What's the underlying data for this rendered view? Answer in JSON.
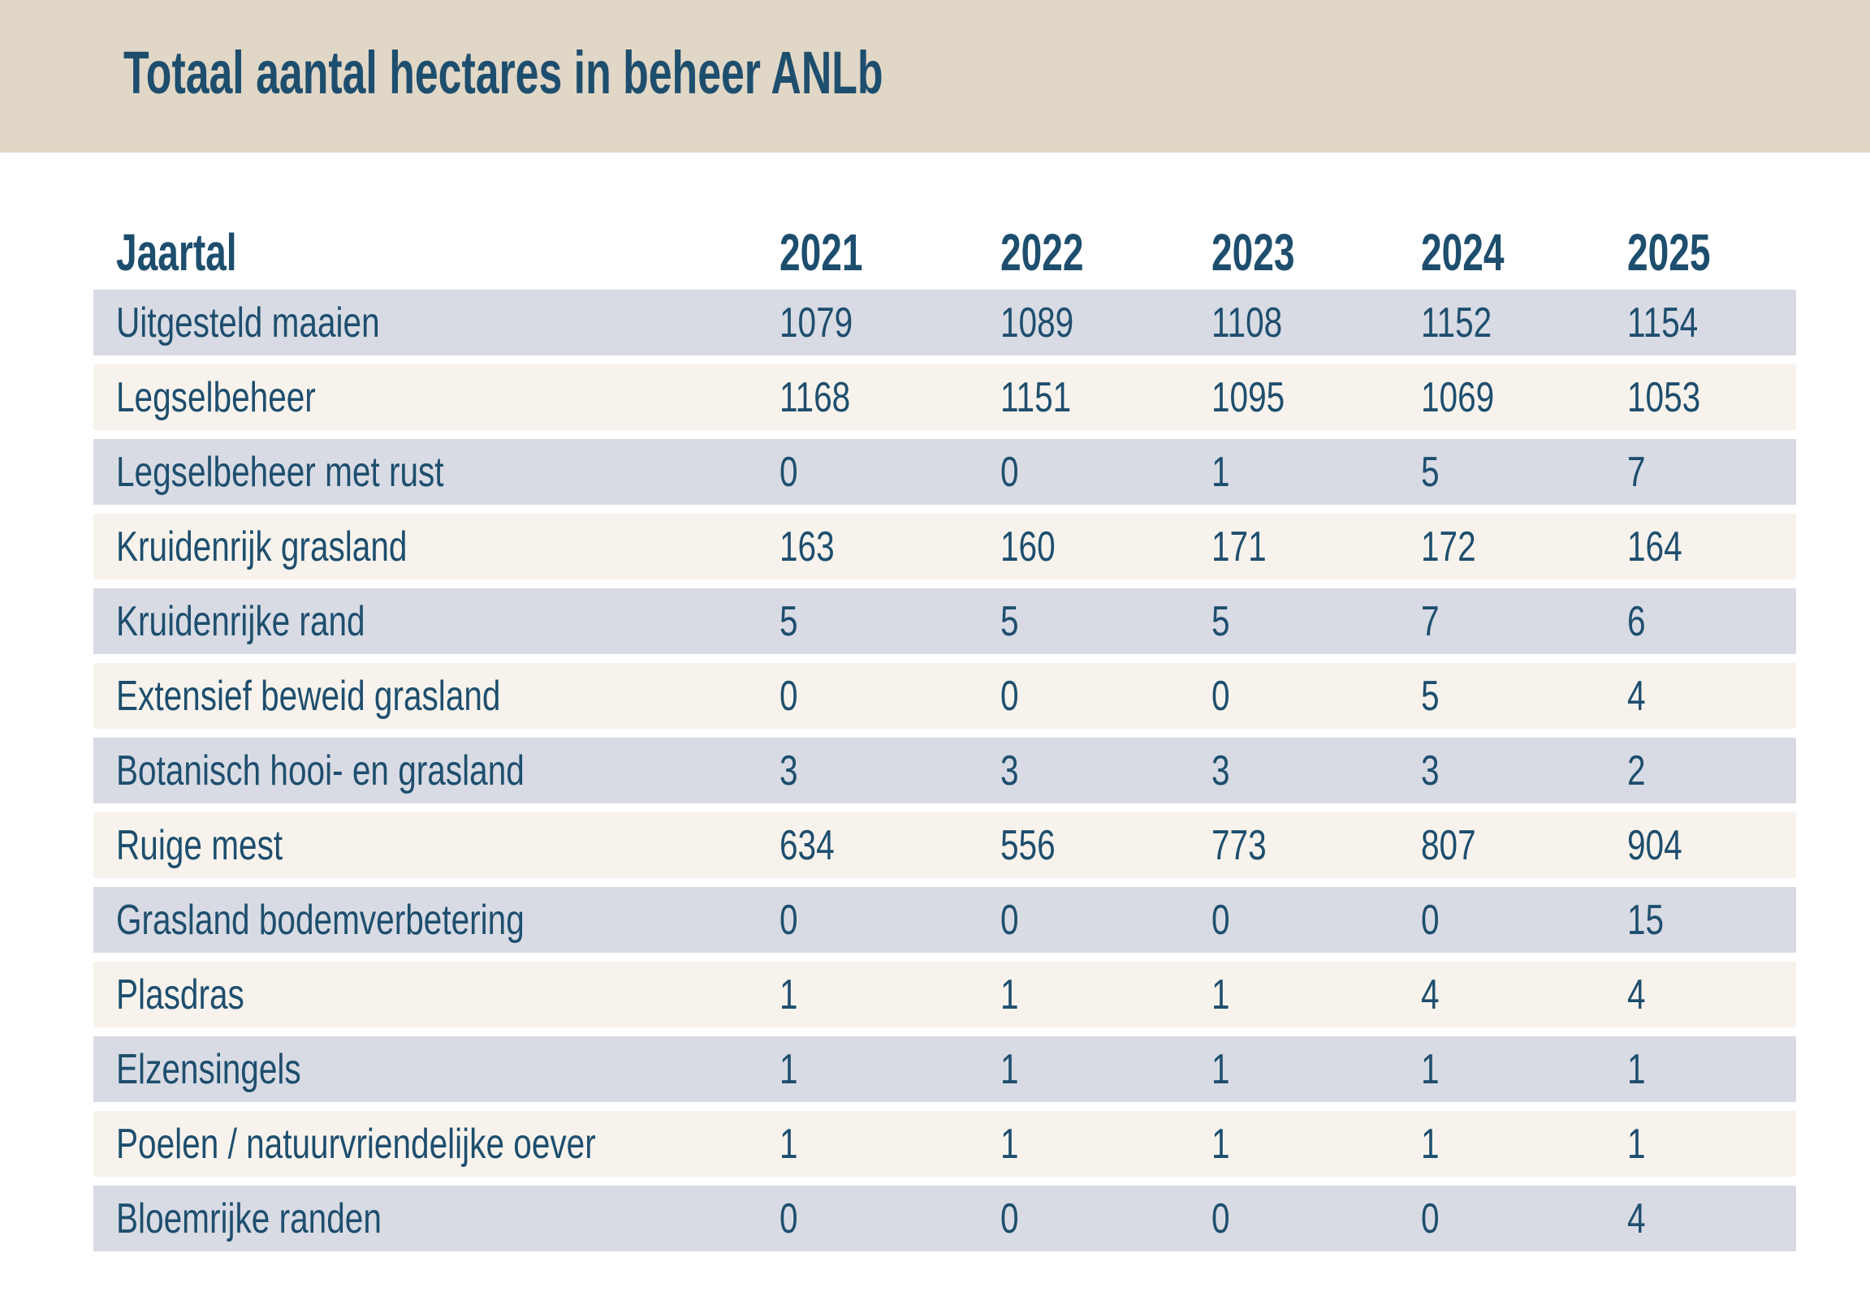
{
  "header": {
    "title": "Totaal aantal hectares in beheer ANLb"
  },
  "chart_data": {
    "type": "table",
    "title": "Totaal aantal hectares in beheer ANLb",
    "row_header": "Jaartal",
    "columns": [
      "2021",
      "2022",
      "2023",
      "2024",
      "2025"
    ],
    "rows": [
      {
        "label": "Uitgesteld maaien",
        "values": [
          1079,
          1089,
          1108,
          1152,
          1154
        ]
      },
      {
        "label": "Legselbeheer",
        "values": [
          1168,
          1151,
          1095,
          1069,
          1053
        ]
      },
      {
        "label": "Legselbeheer met rust",
        "values": [
          0,
          0,
          1,
          5,
          7
        ]
      },
      {
        "label": "Kruidenrijk grasland",
        "values": [
          163,
          160,
          171,
          172,
          164
        ]
      },
      {
        "label": "Kruidenrijke rand",
        "values": [
          5,
          5,
          5,
          7,
          6
        ]
      },
      {
        "label": "Extensief beweid grasland",
        "values": [
          0,
          0,
          0,
          5,
          4
        ]
      },
      {
        "label": "Botanisch hooi- en grasland",
        "values": [
          3,
          3,
          3,
          3,
          2
        ]
      },
      {
        "label": "Ruige mest",
        "values": [
          634,
          556,
          773,
          807,
          904
        ]
      },
      {
        "label": "Grasland bodemverbetering",
        "values": [
          0,
          0,
          0,
          0,
          15
        ]
      },
      {
        "label": "Plasdras",
        "values": [
          1,
          1,
          1,
          4,
          4
        ]
      },
      {
        "label": "Elzensingels",
        "values": [
          1,
          1,
          1,
          1,
          1
        ]
      },
      {
        "label": "Poelen / natuurvriendelijke oever",
        "values": [
          1,
          1,
          1,
          1,
          1
        ]
      },
      {
        "label": "Bloemrijke randen",
        "values": [
          0,
          0,
          0,
          0,
          4
        ]
      }
    ]
  },
  "colors": {
    "ink": "#1e4e6e",
    "band": "#e1d7c6",
    "row-odd": "#d8dbe4",
    "row-even": "#f7f3ec",
    "page-bg": "#ffffff"
  }
}
